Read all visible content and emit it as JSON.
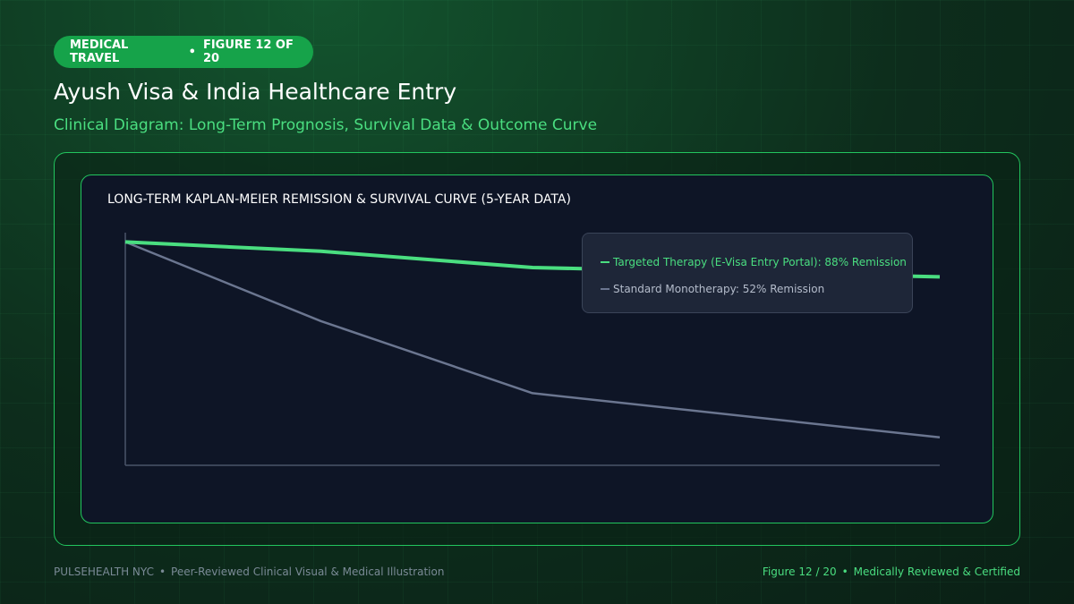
{
  "header": {
    "badge": "MEDICAL TRAVEL",
    "figure": "FIGURE 12 OF 20",
    "title": "Ayush Visa & India Healthcare Entry",
    "subtitle": "Clinical Diagram: Long-Term Prognosis, Survival Data & Outcome Curve"
  },
  "chart_data": {
    "type": "line",
    "title": "LONG-TERM KAPLAN-MEIER REMISSION & SURVIVAL CURVE (5-YEAR DATA)",
    "x": [
      0,
      1.2,
      2.5,
      5
    ],
    "xlim": [
      0,
      5
    ],
    "ylim": [
      0,
      100
    ],
    "legend": "top-right",
    "series": [
      {
        "name": "Targeted Therapy (E-Visa Entry Portal): 88% Remission",
        "color": "#4ade80",
        "values": [
          96,
          92,
          85,
          81
        ]
      },
      {
        "name": "Standard Monotherapy: 52% Remission",
        "color": "#6b7690",
        "values": [
          96,
          62,
          31,
          12
        ]
      }
    ]
  },
  "footer": {
    "brand": "PULSEHEALTH NYC",
    "note": "Peer-Reviewed Clinical Visual & Medical Illustration",
    "figure": "Figure 12 / 20",
    "status": "Medically Reviewed & Certified"
  }
}
